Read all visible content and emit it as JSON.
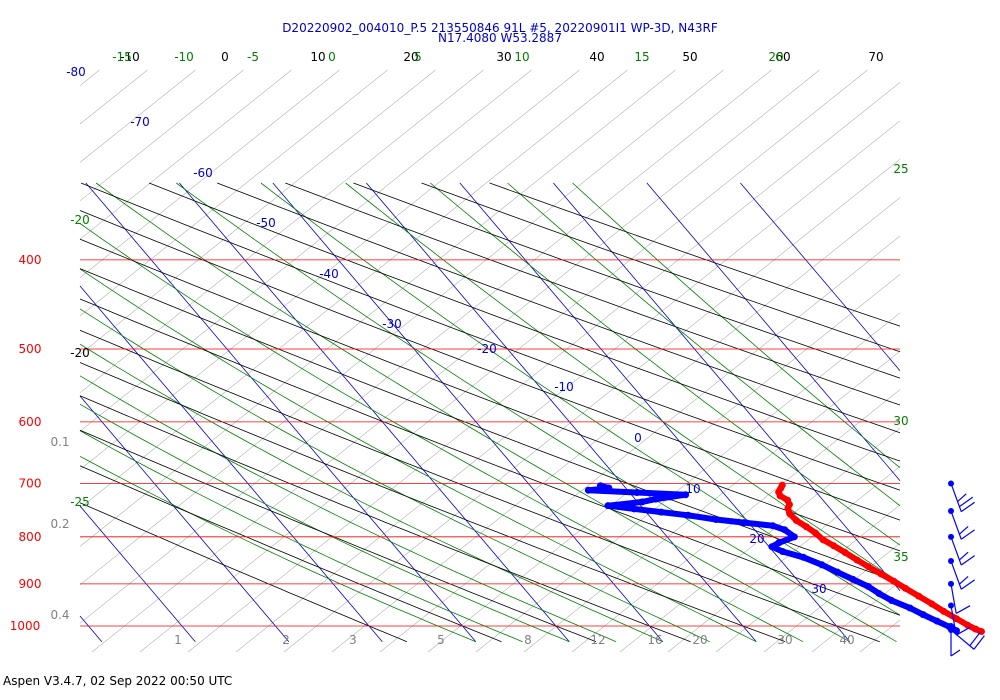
{
  "header": {
    "title_line1": "D20220902_004010_P.5 213550846 91L #5, 20220901I1 WP-3D, N43RF",
    "title_line2": "N17.4080 W53.2887"
  },
  "footer": {
    "text": "Aspen V3.4.7, 02 Sep 2022  00:50 UTC"
  },
  "chart_data": {
    "type": "skew-T log-P diagram",
    "pressure_levels": [
      "400",
      "500",
      "600",
      "700",
      "800",
      "900",
      "1000"
    ],
    "mixing_ratio_labels": [
      "0.1",
      "0.2",
      "0.4",
      "1",
      "2",
      "3",
      "5",
      "8",
      "12",
      "16",
      "20",
      "30",
      "40"
    ],
    "isotherm_labels": [
      "-80",
      "-70",
      "-60",
      "-50",
      "-40",
      "-30",
      "-20",
      "-10",
      "0",
      "10",
      "20",
      "30"
    ],
    "dry_adiabat_labels": [
      "-10",
      "0",
      "10",
      "20",
      "30",
      "40",
      "50",
      "60",
      "70",
      "-20"
    ],
    "moist_adiabat_labels": [
      "-15",
      "-10",
      "-5",
      "0",
      "5",
      "10",
      "15",
      "20",
      "25",
      "30",
      "35",
      "-20",
      "-25"
    ],
    "temperature_series": {
      "name": "Temperature",
      "color": "#ff0000",
      "points": [
        {
          "p": 703,
          "t": 17.0
        },
        {
          "p": 708,
          "t": 16.6
        },
        {
          "p": 715,
          "t": 16.0
        },
        {
          "p": 722,
          "t": 15.8
        },
        {
          "p": 730,
          "t": 16.2
        },
        {
          "p": 738,
          "t": 16.0
        },
        {
          "p": 745,
          "t": 15.5
        },
        {
          "p": 755,
          "t": 15.2
        },
        {
          "p": 768,
          "t": 15.3
        },
        {
          "p": 780,
          "t": 15.8
        },
        {
          "p": 792,
          "t": 16.2
        },
        {
          "p": 806,
          "t": 16.4
        },
        {
          "p": 818,
          "t": 17.0
        },
        {
          "p": 832,
          "t": 17.6
        },
        {
          "p": 848,
          "t": 18.2
        },
        {
          "p": 862,
          "t": 18.8
        },
        {
          "p": 878,
          "t": 19.5
        },
        {
          "p": 894,
          "t": 20.2
        },
        {
          "p": 910,
          "t": 20.8
        },
        {
          "p": 928,
          "t": 21.5
        },
        {
          "p": 946,
          "t": 22.2
        },
        {
          "p": 964,
          "t": 22.8
        },
        {
          "p": 982,
          "t": 23.5
        },
        {
          "p": 998,
          "t": 24.1
        },
        {
          "p": 1008,
          "t": 24.6
        },
        {
          "p": 1014,
          "t": 25.0
        }
      ]
    },
    "dewpoint_series": {
      "name": "Dewpoint",
      "color": "#0000ff",
      "points": [
        {
          "p": 704,
          "t": -2.5
        },
        {
          "p": 708,
          "t": -1.8
        },
        {
          "p": 712,
          "t": -4.2
        },
        {
          "p": 716,
          "t": 0.8
        },
        {
          "p": 720,
          "t": 5.8
        },
        {
          "p": 724,
          "t": 4.0
        },
        {
          "p": 728,
          "t": 2.2
        },
        {
          "p": 733,
          "t": 0.5
        },
        {
          "p": 740,
          "t": -3.5
        },
        {
          "p": 746,
          "t": -1.0
        },
        {
          "p": 752,
          "t": 1.6
        },
        {
          "p": 758,
          "t": 4.2
        },
        {
          "p": 766,
          "t": 6.8
        },
        {
          "p": 772,
          "t": 9.5
        },
        {
          "p": 778,
          "t": 12.3
        },
        {
          "p": 786,
          "t": 13.2
        },
        {
          "p": 800,
          "t": 13.6
        },
        {
          "p": 812,
          "t": 11.4
        },
        {
          "p": 820,
          "t": 10.3
        },
        {
          "p": 830,
          "t": 11.0
        },
        {
          "p": 842,
          "t": 12.7
        },
        {
          "p": 858,
          "t": 14.0
        },
        {
          "p": 874,
          "t": 15.0
        },
        {
          "p": 890,
          "t": 16.0
        },
        {
          "p": 906,
          "t": 17.0
        },
        {
          "p": 922,
          "t": 17.5
        },
        {
          "p": 938,
          "t": 18.2
        },
        {
          "p": 956,
          "t": 19.5
        },
        {
          "p": 972,
          "t": 20.3
        },
        {
          "p": 988,
          "t": 21.2
        },
        {
          "p": 1002,
          "t": 22.0
        },
        {
          "p": 1012,
          "t": 22.4
        }
      ]
    },
    "wind_barbs": [
      {
        "p": 700,
        "speed_kt": 25,
        "direction_deg": 160
      },
      {
        "p": 750,
        "speed_kt": 15,
        "direction_deg": 160
      },
      {
        "p": 800,
        "speed_kt": 15,
        "direction_deg": 160
      },
      {
        "p": 850,
        "speed_kt": 15,
        "direction_deg": 160
      },
      {
        "p": 900,
        "speed_kt": 10,
        "direction_deg": 170
      },
      {
        "p": 950,
        "speed_kt": 10,
        "direction_deg": 170
      },
      {
        "p": 1000,
        "speed_kt": 5,
        "direction_deg": 180
      },
      {
        "p": 1010,
        "speed_kt": 20,
        "direction_deg": 130
      }
    ],
    "colors": {
      "isobar": "#ff0000",
      "isotherm": "#0000cc",
      "dry_adiabat": "#000000",
      "moist_adiabat": "#008000",
      "mixing_ratio": "#999999",
      "barb": "#0000ff"
    }
  }
}
